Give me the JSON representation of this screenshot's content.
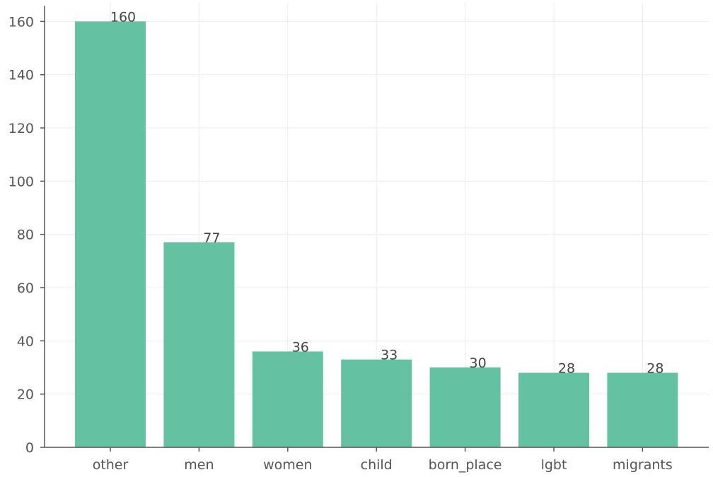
{
  "chart_data": {
    "type": "bar",
    "title": "",
    "xlabel": "",
    "ylabel": "",
    "categories": [
      "other",
      "men",
      "women",
      "child",
      "born_place",
      "lgbt",
      "migrants"
    ],
    "values": [
      160,
      77,
      36,
      33,
      30,
      28,
      28
    ],
    "ylim": [
      0,
      167
    ],
    "yticks": [
      0,
      20,
      40,
      60,
      80,
      100,
      120,
      140,
      160
    ],
    "grid": true,
    "legend": "none",
    "colors": {
      "bar": "#64c1a2",
      "axis": "#555555",
      "grid": "#ebebeb"
    }
  }
}
